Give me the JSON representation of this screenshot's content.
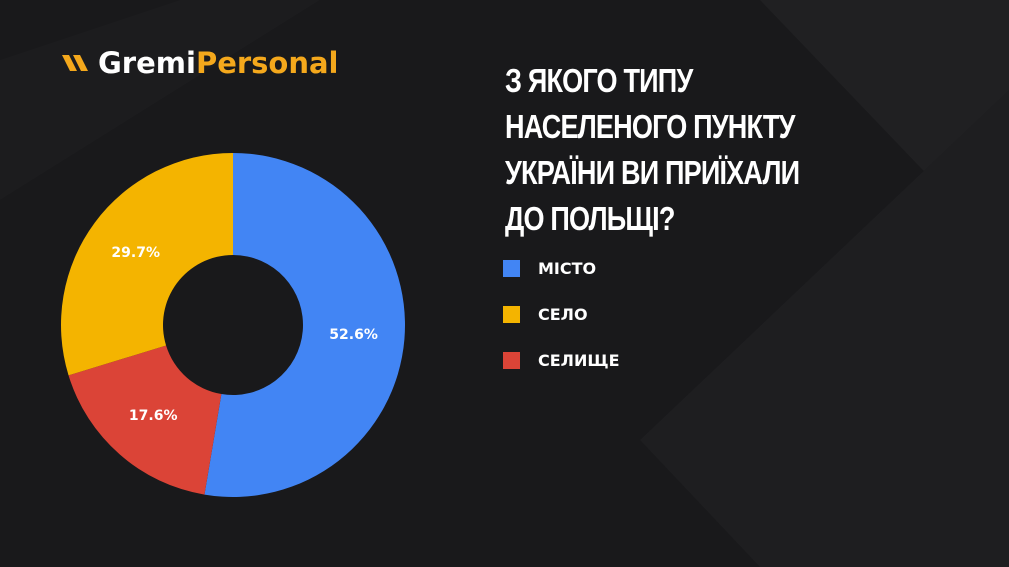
{
  "logo": {
    "part1": "Gremi",
    "part2": "Personal"
  },
  "chart_data": {
    "type": "pie",
    "title": "З ЯКОГО ТИПУ НАСЕЛЕНОГО ПУНКТУ УКРАЇНИ ВИ ПРИЇХАЛИ ДО ПОЛЬЩІ?",
    "categories": [
      "МІСТО",
      "СЕЛО",
      "СЕЛИЩЕ"
    ],
    "values": [
      52.6,
      29.7,
      17.6
    ],
    "value_labels": [
      "52.6%",
      "29.7%",
      "17.6%"
    ],
    "colors": [
      "#4285f4",
      "#f4b400",
      "#db4437"
    ],
    "donut": true
  }
}
